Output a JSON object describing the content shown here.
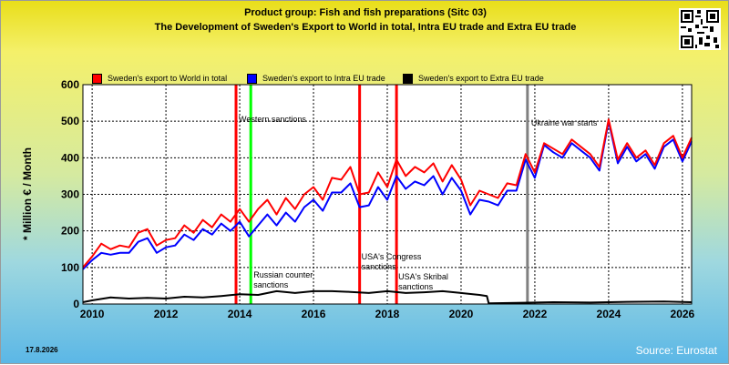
{
  "header": {
    "title_line1": "Product group: Fish and fish preparations (Sitc 03)",
    "title_line2": "The Development of Sweden's Export to World in total, Intra EU trade and Extra EU trade"
  },
  "footer": {
    "date": "17.8.2026",
    "source": "Source: Eurostat"
  },
  "chart_data": {
    "type": "line",
    "ylabel": "* Million € / Month",
    "ylim": [
      0,
      600
    ],
    "yticks": [
      0,
      100,
      200,
      300,
      400,
      500,
      600
    ],
    "xlim": [
      2009.75,
      2026.25
    ],
    "xticks": [
      2010,
      2012,
      2014,
      2016,
      2018,
      2020,
      2022,
      2024,
      2026
    ],
    "grid": true,
    "legend_position": "top",
    "series": [
      {
        "name": "Sweden's export to World in total",
        "color": "#ff0000",
        "points": [
          [
            2009.75,
            100
          ],
          [
            2010.0,
            130
          ],
          [
            2010.25,
            165
          ],
          [
            2010.5,
            150
          ],
          [
            2010.75,
            160
          ],
          [
            2011.0,
            155
          ],
          [
            2011.25,
            195
          ],
          [
            2011.5,
            205
          ],
          [
            2011.75,
            160
          ],
          [
            2012.0,
            175
          ],
          [
            2012.25,
            180
          ],
          [
            2012.5,
            215
          ],
          [
            2012.75,
            195
          ],
          [
            2013.0,
            230
          ],
          [
            2013.25,
            210
          ],
          [
            2013.5,
            245
          ],
          [
            2013.75,
            225
          ],
          [
            2014.0,
            260
          ],
          [
            2014.25,
            225
          ],
          [
            2014.5,
            260
          ],
          [
            2014.75,
            285
          ],
          [
            2015.0,
            245
          ],
          [
            2015.25,
            290
          ],
          [
            2015.5,
            260
          ],
          [
            2015.75,
            300
          ],
          [
            2016.0,
            320
          ],
          [
            2016.25,
            285
          ],
          [
            2016.5,
            345
          ],
          [
            2016.75,
            340
          ],
          [
            2017.0,
            375
          ],
          [
            2017.25,
            300
          ],
          [
            2017.5,
            305
          ],
          [
            2017.75,
            360
          ],
          [
            2018.0,
            320
          ],
          [
            2018.25,
            395
          ],
          [
            2018.5,
            350
          ],
          [
            2018.75,
            375
          ],
          [
            2019.0,
            360
          ],
          [
            2019.25,
            385
          ],
          [
            2019.5,
            335
          ],
          [
            2019.75,
            380
          ],
          [
            2020.0,
            340
          ],
          [
            2020.25,
            270
          ],
          [
            2020.5,
            310
          ],
          [
            2020.75,
            300
          ],
          [
            2021.0,
            290
          ],
          [
            2021.25,
            330
          ],
          [
            2021.5,
            325
          ],
          [
            2021.75,
            410
          ],
          [
            2022.0,
            360
          ],
          [
            2022.25,
            440
          ],
          [
            2022.5,
            425
          ],
          [
            2022.75,
            410
          ],
          [
            2023.0,
            450
          ],
          [
            2023.25,
            430
          ],
          [
            2023.5,
            410
          ],
          [
            2023.75,
            375
          ],
          [
            2024.0,
            505
          ],
          [
            2024.25,
            395
          ],
          [
            2024.5,
            440
          ],
          [
            2024.75,
            400
          ],
          [
            2025.0,
            420
          ],
          [
            2025.25,
            380
          ],
          [
            2025.5,
            440
          ],
          [
            2025.75,
            460
          ],
          [
            2026.0,
            400
          ],
          [
            2026.25,
            455
          ]
        ]
      },
      {
        "name": "Sweden's export to Intra EU trade",
        "color": "#0000ff",
        "points": [
          [
            2009.75,
            95
          ],
          [
            2010.0,
            120
          ],
          [
            2010.25,
            140
          ],
          [
            2010.5,
            135
          ],
          [
            2010.75,
            140
          ],
          [
            2011.0,
            140
          ],
          [
            2011.25,
            170
          ],
          [
            2011.5,
            180
          ],
          [
            2011.75,
            140
          ],
          [
            2012.0,
            155
          ],
          [
            2012.25,
            160
          ],
          [
            2012.5,
            190
          ],
          [
            2012.75,
            175
          ],
          [
            2013.0,
            205
          ],
          [
            2013.25,
            190
          ],
          [
            2013.5,
            220
          ],
          [
            2013.75,
            200
          ],
          [
            2014.0,
            225
          ],
          [
            2014.25,
            185
          ],
          [
            2014.5,
            215
          ],
          [
            2014.75,
            245
          ],
          [
            2015.0,
            215
          ],
          [
            2015.25,
            250
          ],
          [
            2015.5,
            225
          ],
          [
            2015.75,
            265
          ],
          [
            2016.0,
            285
          ],
          [
            2016.25,
            255
          ],
          [
            2016.5,
            305
          ],
          [
            2016.75,
            305
          ],
          [
            2017.0,
            330
          ],
          [
            2017.25,
            265
          ],
          [
            2017.5,
            270
          ],
          [
            2017.75,
            320
          ],
          [
            2018.0,
            285
          ],
          [
            2018.25,
            350
          ],
          [
            2018.5,
            315
          ],
          [
            2018.75,
            335
          ],
          [
            2019.0,
            325
          ],
          [
            2019.25,
            350
          ],
          [
            2019.5,
            300
          ],
          [
            2019.75,
            345
          ],
          [
            2020.0,
            310
          ],
          [
            2020.25,
            245
          ],
          [
            2020.5,
            285
          ],
          [
            2020.75,
            280
          ],
          [
            2021.0,
            270
          ],
          [
            2021.25,
            310
          ],
          [
            2021.5,
            310
          ],
          [
            2021.75,
            395
          ],
          [
            2022.0,
            345
          ],
          [
            2022.25,
            435
          ],
          [
            2022.5,
            415
          ],
          [
            2022.75,
            400
          ],
          [
            2023.0,
            440
          ],
          [
            2023.25,
            420
          ],
          [
            2023.5,
            400
          ],
          [
            2023.75,
            365
          ],
          [
            2024.0,
            500
          ],
          [
            2024.25,
            385
          ],
          [
            2024.5,
            430
          ],
          [
            2024.75,
            390
          ],
          [
            2025.0,
            410
          ],
          [
            2025.25,
            370
          ],
          [
            2025.5,
            430
          ],
          [
            2025.75,
            450
          ],
          [
            2026.0,
            390
          ],
          [
            2026.25,
            445
          ]
        ]
      },
      {
        "name": "Sweden's export to Extra EU trade",
        "color": "#000000",
        "points": [
          [
            2009.75,
            5
          ],
          [
            2010.0,
            10
          ],
          [
            2010.5,
            18
          ],
          [
            2011.0,
            15
          ],
          [
            2011.5,
            17
          ],
          [
            2012.0,
            15
          ],
          [
            2012.5,
            20
          ],
          [
            2013.0,
            18
          ],
          [
            2013.5,
            22
          ],
          [
            2014.0,
            27
          ],
          [
            2014.5,
            25
          ],
          [
            2015.0,
            35
          ],
          [
            2015.5,
            30
          ],
          [
            2016.0,
            35
          ],
          [
            2016.5,
            35
          ],
          [
            2017.0,
            33
          ],
          [
            2017.5,
            30
          ],
          [
            2018.0,
            35
          ],
          [
            2018.5,
            30
          ],
          [
            2019.0,
            32
          ],
          [
            2019.5,
            35
          ],
          [
            2020.0,
            30
          ],
          [
            2020.5,
            25
          ],
          [
            2020.7,
            22
          ],
          [
            2020.75,
            2
          ],
          [
            2021.5,
            3
          ],
          [
            2022.5,
            5
          ],
          [
            2023.5,
            4
          ],
          [
            2024.5,
            6
          ],
          [
            2025.5,
            7
          ],
          [
            2026.25,
            5
          ]
        ]
      }
    ],
    "markers": [
      {
        "x": 2013.9,
        "color": "#ff0000",
        "label": "Western sanctions"
      },
      {
        "x": 2014.3,
        "color": "#00ff00",
        "label": "Russian counter sanctions"
      },
      {
        "x": 2017.25,
        "color": "#ff0000",
        "label": "USA's Congress sanctions"
      },
      {
        "x": 2018.25,
        "color": "#ff0000",
        "label": "USA's Skribal sanctions"
      },
      {
        "x": 2021.8,
        "color": "#808080",
        "label": "Ukraine war starts"
      }
    ]
  }
}
